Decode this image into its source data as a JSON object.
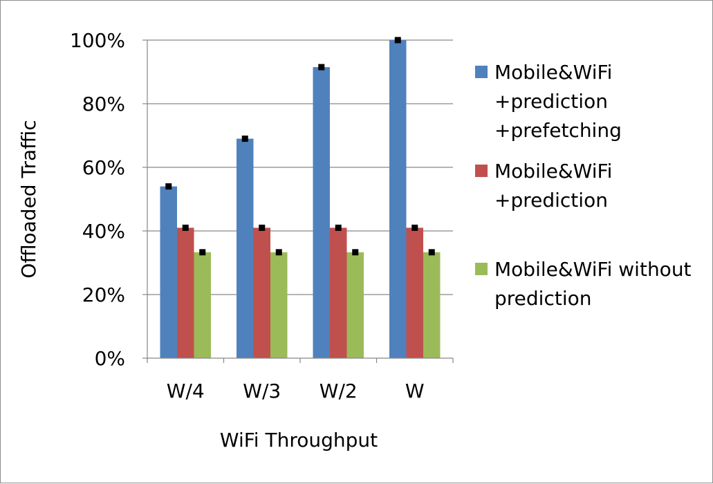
{
  "chart_data": {
    "type": "bar",
    "title": "",
    "xlabel": "WiFi Throughput",
    "ylabel": "Offloaded Traffic",
    "categories": [
      "W/4",
      "W/3",
      "W/2",
      "W"
    ],
    "ylim": [
      0,
      100
    ],
    "y_ticks": [
      0,
      20,
      40,
      60,
      80,
      100
    ],
    "y_tick_labels": [
      "0%",
      "20%",
      "40%",
      "60%",
      "80%",
      "100%"
    ],
    "grid": true,
    "legend_position": "right",
    "error_markers": true,
    "series": [
      {
        "name": "Mobile&WiFi +prediction +prefetching",
        "legend_lines": [
          "Mobile&WiFi",
          "+prediction",
          "+prefetching"
        ],
        "color": "#4f81bd",
        "values": [
          54,
          69,
          91.5,
          100
        ]
      },
      {
        "name": "Mobile&WiFi +prediction",
        "legend_lines": [
          "Mobile&WiFi",
          "+prediction"
        ],
        "color": "#c0504d",
        "values": [
          41,
          41,
          41,
          41
        ]
      },
      {
        "name": "Mobile&WiFi without prediction",
        "legend_lines": [
          "Mobile&WiFi without",
          "prediction"
        ],
        "color": "#9bbb59",
        "values": [
          33.3,
          33.3,
          33.3,
          33.3
        ]
      }
    ]
  }
}
